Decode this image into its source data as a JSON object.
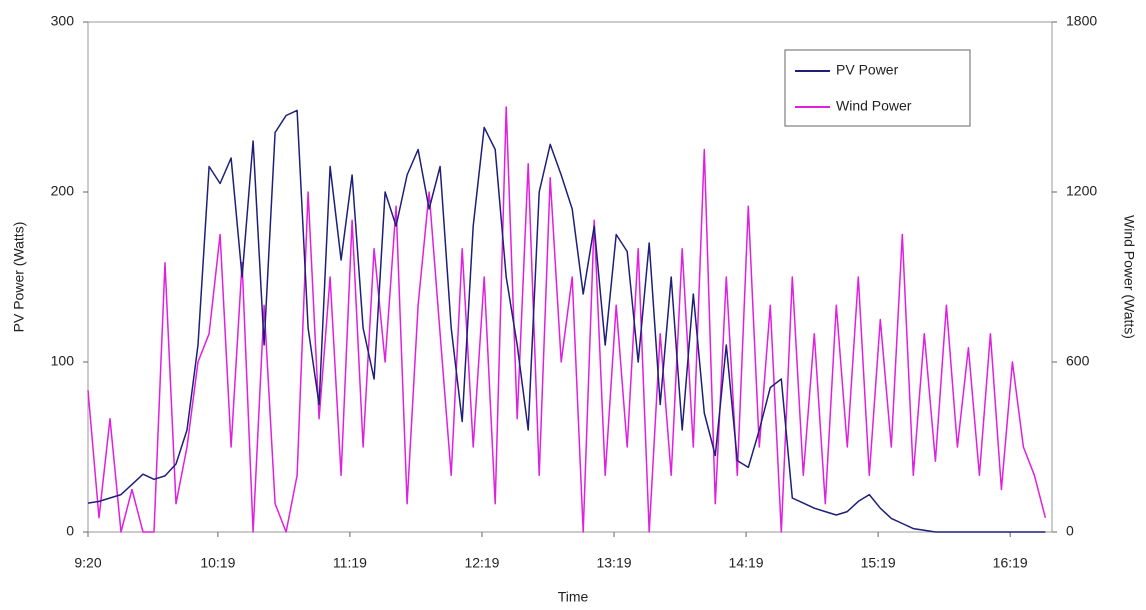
{
  "chart_data": {
    "type": "line",
    "x_label": "Time",
    "y_label": "PV Power (Watts)",
    "y2_label": "Wind Power (Watts)",
    "x": [
      560,
      565,
      570,
      575,
      580,
      585,
      590,
      595,
      600,
      605,
      610,
      615,
      620,
      625,
      630,
      635,
      640,
      645,
      650,
      655,
      660,
      665,
      670,
      675,
      680,
      685,
      690,
      695,
      700,
      705,
      710,
      715,
      720,
      725,
      730,
      735,
      740,
      745,
      750,
      755,
      760,
      765,
      770,
      775,
      780,
      785,
      790,
      795,
      800,
      805,
      810,
      815,
      820,
      825,
      830,
      835,
      840,
      845,
      850,
      855,
      860,
      865,
      870,
      875,
      880,
      885,
      890,
      895,
      900,
      905,
      910,
      915,
      920,
      925,
      930,
      935,
      940,
      945,
      950,
      955,
      960,
      965,
      970,
      975,
      980,
      985,
      990,
      995
    ],
    "xlim": [
      560,
      998
    ],
    "xticks": [
      {
        "value": 560,
        "label": "9:20"
      },
      {
        "value": 619,
        "label": "10:19"
      },
      {
        "value": 679,
        "label": "11:19"
      },
      {
        "value": 739,
        "label": "12:19"
      },
      {
        "value": 799,
        "label": "13:19"
      },
      {
        "value": 859,
        "label": "14:19"
      },
      {
        "value": 919,
        "label": "15:19"
      },
      {
        "value": 979,
        "label": "16:19"
      }
    ],
    "ylim": [
      0,
      300
    ],
    "yticks": [
      0,
      100,
      200,
      300
    ],
    "y2lim": [
      0,
      1800
    ],
    "y2ticks": [
      0,
      600,
      1200,
      1800
    ],
    "legend": "upper right",
    "series": [
      {
        "name": "PV Power",
        "color": "#1f1f7a",
        "values": [
          17,
          18,
          20,
          22,
          28,
          34,
          31,
          33,
          40,
          60,
          110,
          215,
          205,
          220,
          150,
          230,
          110,
          235,
          245,
          248,
          120,
          75,
          215,
          160,
          210,
          120,
          90,
          200,
          180,
          210,
          225,
          190,
          215,
          120,
          65,
          180,
          238,
          225,
          150,
          110,
          60,
          200,
          228,
          210,
          190,
          140,
          180,
          110,
          175,
          165,
          100,
          170,
          75,
          150,
          60,
          140,
          70,
          45,
          110,
          42,
          38,
          60,
          85,
          90,
          20,
          17,
          14,
          12,
          10,
          12,
          18,
          22,
          14,
          8,
          5,
          2,
          1,
          0,
          0,
          0,
          0,
          0,
          0,
          0,
          0,
          0,
          0,
          0
        ]
      },
      {
        "name": "Wind Power",
        "color": "#e020e0",
        "axis": "y2",
        "values": [
          500,
          50,
          400,
          0,
          150,
          0,
          0,
          950,
          100,
          300,
          600,
          700,
          1050,
          300,
          950,
          0,
          800,
          100,
          0,
          200,
          1200,
          400,
          900,
          200,
          1100,
          300,
          1000,
          600,
          1150,
          100,
          800,
          1200,
          700,
          200,
          1000,
          300,
          900,
          100,
          1500,
          400,
          1300,
          200,
          1250,
          600,
          900,
          0,
          1100,
          200,
          800,
          300,
          1000,
          0,
          700,
          200,
          1000,
          300,
          1350,
          100,
          900,
          200,
          1150,
          300,
          800,
          0,
          900,
          200,
          700,
          100,
          800,
          300,
          900,
          200,
          750,
          300,
          1050,
          200,
          700,
          250,
          800,
          300,
          650,
          200,
          700,
          150,
          600,
          300,
          200,
          50
        ]
      }
    ]
  }
}
